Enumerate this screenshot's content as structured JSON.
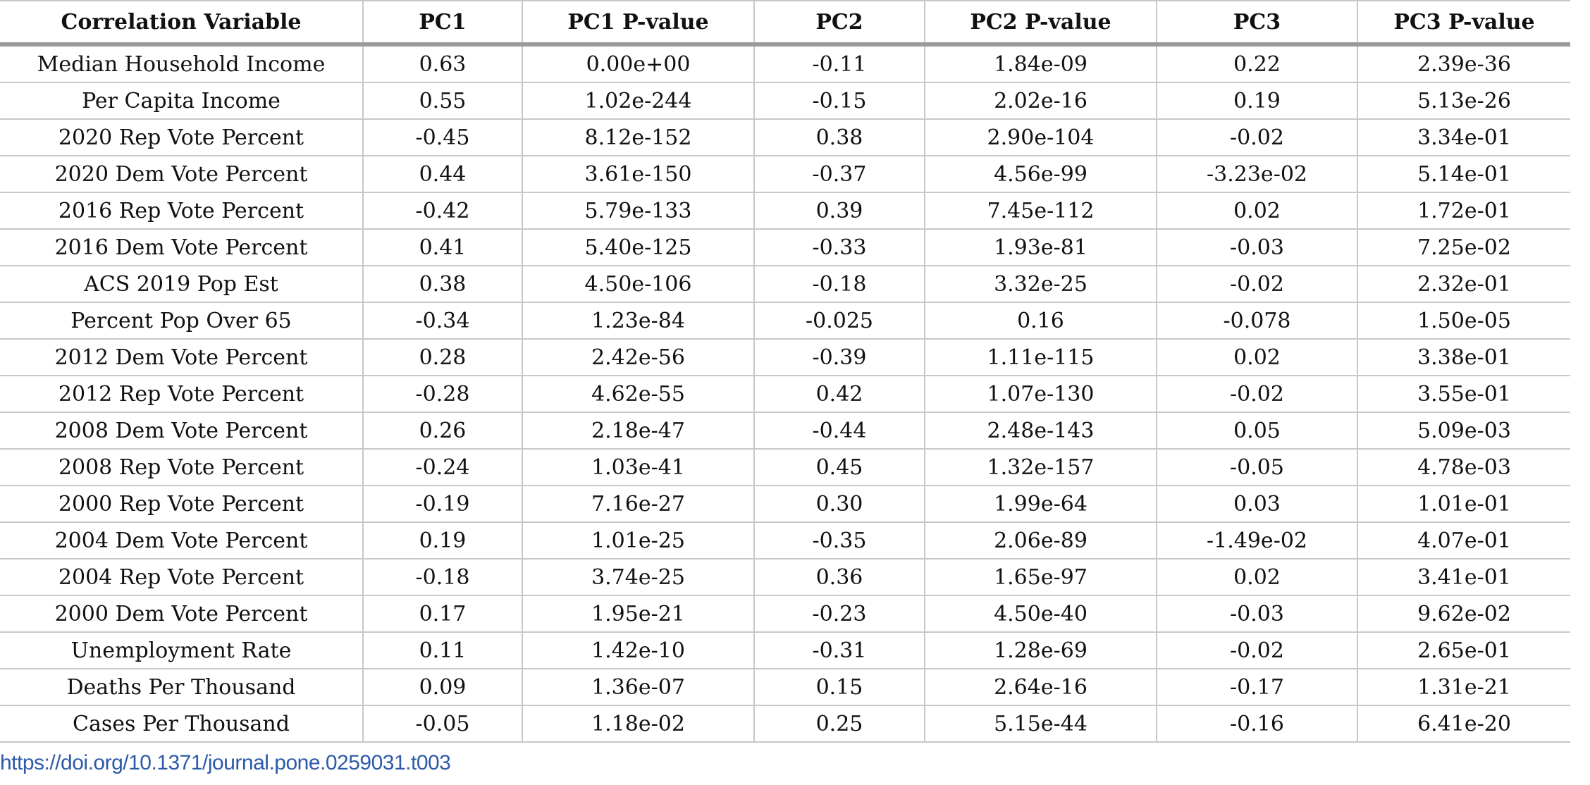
{
  "table": {
    "headers": [
      "Correlation Variable",
      "PC1",
      "PC1 P-value",
      "PC2",
      "PC2 P-value",
      "PC3",
      "PC3 P-value"
    ],
    "rows": [
      [
        "Median Household Income",
        "0.63",
        "0.00e+00",
        "-0.11",
        "1.84e-09",
        "0.22",
        "2.39e-36"
      ],
      [
        "Per Capita Income",
        "0.55",
        "1.02e-244",
        "-0.15",
        "2.02e-16",
        "0.19",
        "5.13e-26"
      ],
      [
        "2020 Rep Vote Percent",
        "-0.45",
        "8.12e-152",
        "0.38",
        "2.90e-104",
        "-0.02",
        "3.34e-01"
      ],
      [
        "2020 Dem Vote Percent",
        "0.44",
        "3.61e-150",
        "-0.37",
        "4.56e-99",
        "-3.23e-02",
        "5.14e-01"
      ],
      [
        "2016 Rep Vote Percent",
        "-0.42",
        "5.79e-133",
        "0.39",
        "7.45e-112",
        "0.02",
        "1.72e-01"
      ],
      [
        "2016 Dem Vote Percent",
        "0.41",
        "5.40e-125",
        "-0.33",
        "1.93e-81",
        "-0.03",
        "7.25e-02"
      ],
      [
        "ACS 2019 Pop Est",
        "0.38",
        "4.50e-106",
        "-0.18",
        "3.32e-25",
        "-0.02",
        "2.32e-01"
      ],
      [
        "Percent Pop Over 65",
        "-0.34",
        "1.23e-84",
        "-0.025",
        "0.16",
        "-0.078",
        "1.50e-05"
      ],
      [
        "2012 Dem Vote Percent",
        "0.28",
        "2.42e-56",
        "-0.39",
        "1.11e-115",
        "0.02",
        "3.38e-01"
      ],
      [
        "2012 Rep Vote Percent",
        "-0.28",
        "4.62e-55",
        "0.42",
        "1.07e-130",
        "-0.02",
        "3.55e-01"
      ],
      [
        "2008 Dem Vote Percent",
        "0.26",
        "2.18e-47",
        "-0.44",
        "2.48e-143",
        "0.05",
        "5.09e-03"
      ],
      [
        "2008 Rep Vote Percent",
        "-0.24",
        "1.03e-41",
        "0.45",
        "1.32e-157",
        "-0.05",
        "4.78e-03"
      ],
      [
        "2000 Rep Vote Percent",
        "-0.19",
        "7.16e-27",
        "0.30",
        "1.99e-64",
        "0.03",
        "1.01e-01"
      ],
      [
        "2004 Dem Vote Percent",
        "0.19",
        "1.01e-25",
        "-0.35",
        "2.06e-89",
        "-1.49e-02",
        "4.07e-01"
      ],
      [
        "2004 Rep Vote Percent",
        "-0.18",
        "3.74e-25",
        "0.36",
        "1.65e-97",
        "0.02",
        "3.41e-01"
      ],
      [
        "2000 Dem Vote Percent",
        "0.17",
        "1.95e-21",
        "-0.23",
        "4.50e-40",
        "-0.03",
        "9.62e-02"
      ],
      [
        "Unemployment Rate",
        "0.11",
        "1.42e-10",
        "-0.31",
        "1.28e-69",
        "-0.02",
        "2.65e-01"
      ],
      [
        "Deaths Per Thousand",
        "0.09",
        "1.36e-07",
        "0.15",
        "2.64e-16",
        "-0.17",
        "1.31e-21"
      ],
      [
        "Cases Per Thousand",
        "-0.05",
        "1.18e-02",
        "0.25",
        "5.15e-44",
        "-0.16",
        "6.41e-20"
      ]
    ]
  },
  "doi_link": "https://doi.org/10.1371/journal.pone.0259031.t003",
  "colors": {
    "link": "#2d5aa8",
    "rule": "#9a9a9a",
    "gridline": "#c8c8c8"
  }
}
